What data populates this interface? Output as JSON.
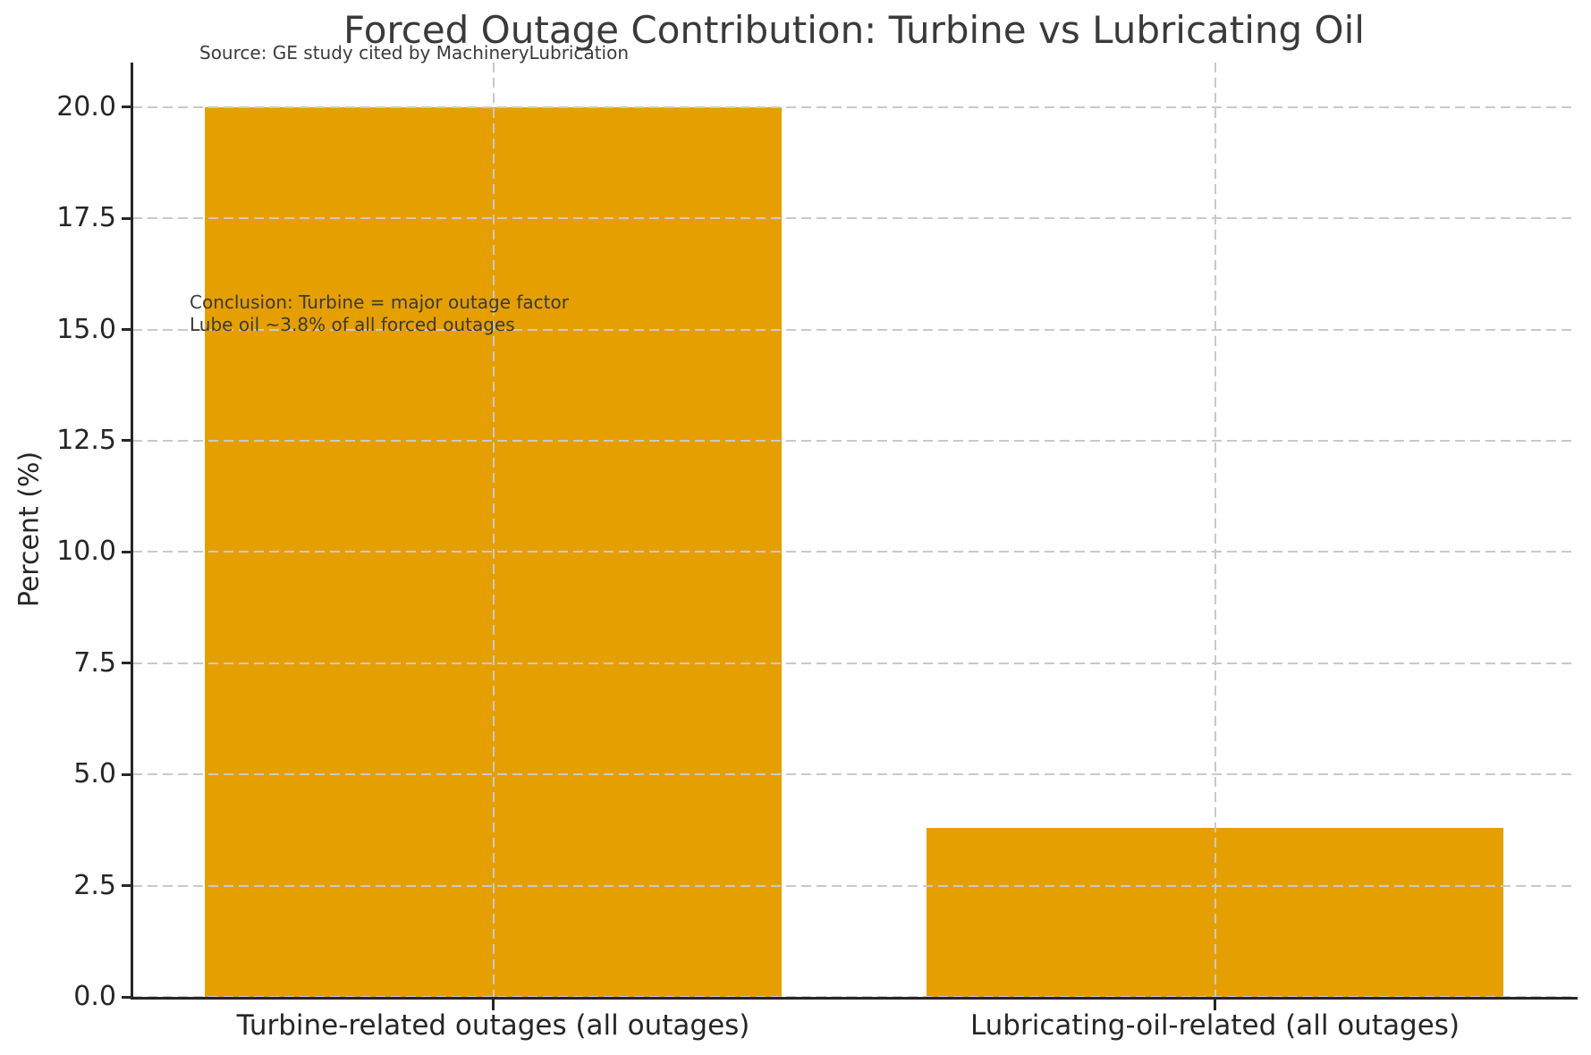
{
  "header": {
    "title": "Forced Outage Contribution: Turbine vs Lubricating Oil",
    "subtitle": "Source: GE study cited by MachineryLubrication"
  },
  "annotation": {
    "line1": "Conclusion: Turbine = major outage factor",
    "line2": "Lube oil ~3.8% of all forced outages"
  },
  "chart_data": {
    "type": "bar",
    "title": "Forced Outage Contribution: Turbine vs Lubricating Oil",
    "subtitle": "Source: GE study cited by MachineryLubrication",
    "categories": [
      "Turbine-related outages (all outages)",
      "Lubricating-oil-related (all outages)"
    ],
    "values": [
      20.0,
      3.8
    ],
    "xlabel": "",
    "ylabel": "Percent (%)",
    "ylim": [
      0,
      21
    ],
    "yticks": [
      0.0,
      2.5,
      5.0,
      7.5,
      10.0,
      12.5,
      15.0,
      17.5,
      20.0
    ],
    "ytick_labels": [
      "0.0",
      "2.5",
      "5.0",
      "7.5",
      "10.0",
      "12.5",
      "15.0",
      "17.5",
      "20.0"
    ],
    "bar_color": "#E69F00",
    "grid": true,
    "grid_style": "dashed",
    "grid_color": "#c9c9c9",
    "legend_position": "none",
    "annotations": [
      "Conclusion: Turbine = major outage factor",
      "Lube oil ~3.8% of all forced outages"
    ]
  }
}
